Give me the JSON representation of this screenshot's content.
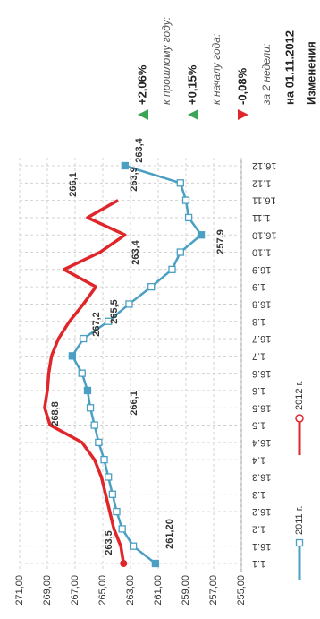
{
  "header": {
    "title": "Изменения",
    "date": "на 01.11.2012",
    "changes": [
      {
        "label": "за 2 недели:",
        "value": "-0,08%"
      },
      {
        "label": "к началу года:",
        "value": "+0,15%"
      },
      {
        "label": "к прошлому году:",
        "value": "+2,06%"
      }
    ]
  },
  "chart_data": {
    "type": "line",
    "categories": [
      "1.1",
      "16.1",
      "1.2",
      "16.2",
      "1.3",
      "16.3",
      "1.4",
      "16.4",
      "1.5",
      "16.5",
      "1.6",
      "16.6",
      "1.7",
      "16.7",
      "1.8",
      "16.8",
      "1.9",
      "16.9",
      "1.10",
      "16.10",
      "1.11",
      "16.11",
      "1.12",
      "16.12"
    ],
    "series": [
      {
        "name": "2011 г.",
        "color": "#4a9fc2",
        "marker": "square",
        "values": [
          261.2,
          262.8,
          263.6,
          264.0,
          264.3,
          264.6,
          264.9,
          265.3,
          265.6,
          265.9,
          266.1,
          266.5,
          267.2,
          266.4,
          264.6,
          263.1,
          261.5,
          260.0,
          259.4,
          257.9,
          258.8,
          259.0,
          259.4,
          263.4
        ],
        "value_labels": [
          "261,20",
          null,
          null,
          null,
          null,
          null,
          null,
          null,
          null,
          null,
          "266,1",
          null,
          "267,2",
          null,
          null,
          null,
          null,
          null,
          null,
          "257,9",
          null,
          null,
          null,
          "263,4"
        ]
      },
      {
        "name": "2012 г.",
        "color": "#e0262b",
        "marker": "circle",
        "values": [
          263.5,
          263.7,
          264.2,
          264.5,
          264.8,
          265.1,
          265.6,
          266.5,
          268.8,
          269.2,
          269.0,
          268.9,
          268.7,
          268.2,
          267.4,
          266.4,
          265.5,
          267.8,
          265.2,
          263.4,
          266.1,
          263.9,
          null,
          null
        ],
        "value_labels": [
          "263,5",
          null,
          null,
          null,
          null,
          null,
          null,
          null,
          "268,8",
          null,
          null,
          null,
          null,
          null,
          null,
          null,
          "265,5",
          null,
          null,
          "263,4",
          "266,1",
          "263,9",
          null,
          null
        ]
      }
    ],
    "ylim": [
      255,
      271
    ],
    "yticks": [
      {
        "value": 255,
        "label": "255,00"
      },
      {
        "value": 257,
        "label": "257,00"
      },
      {
        "value": 259,
        "label": "259,00"
      },
      {
        "value": 261,
        "label": "261,00"
      },
      {
        "value": 263,
        "label": "263,00"
      },
      {
        "value": 265,
        "label": "265,00"
      },
      {
        "value": 267,
        "label": "267,00"
      },
      {
        "value": 269,
        "label": "269,00"
      },
      {
        "value": 271,
        "label": "271,00"
      }
    ],
    "grid": true
  }
}
